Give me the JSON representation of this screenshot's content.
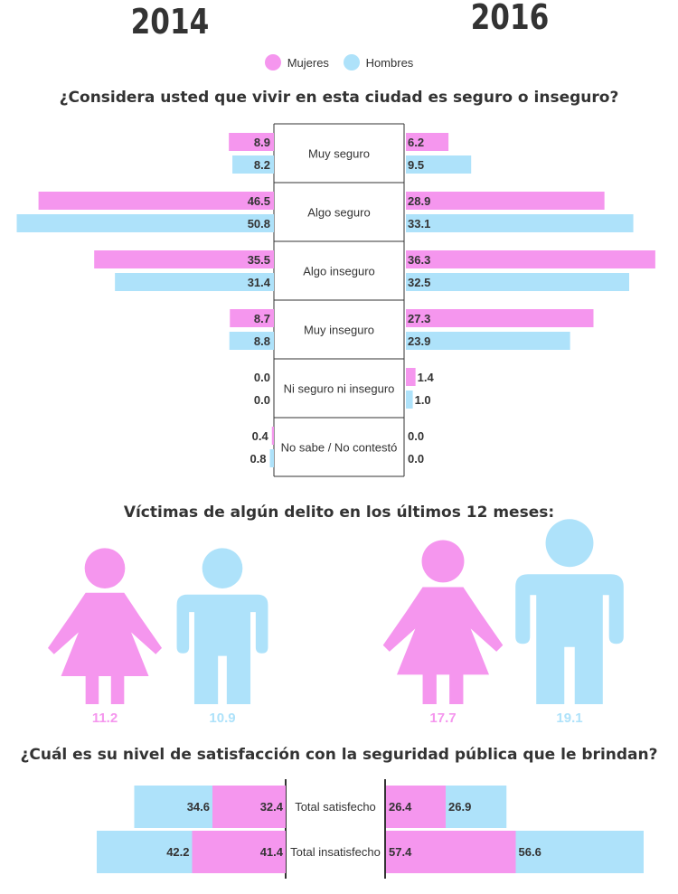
{
  "years": {
    "left": "2014",
    "right": "2016"
  },
  "legend": {
    "female": "Mujeres",
    "male": "Hombres"
  },
  "colors": {
    "female": "#f596ee",
    "male": "#aee2fa",
    "axis": "#333333"
  },
  "titles": {
    "safety": "¿Considera usted que vivir en esta ciudad es seguro o inseguro?",
    "victims": "Víctimas de algún delito en los últimos 12 meses:",
    "satisfaction": "¿Cuál es su nivel de satisfacción con la seguridad pública que le brindan?"
  },
  "chart_data": [
    {
      "type": "bar",
      "orientation": "horizontal-butterfly",
      "title": "¿Considera usted que vivir en esta ciudad es seguro o inseguro?",
      "categories": [
        "Muy seguro",
        "Algo seguro",
        "Algo inseguro",
        "Muy inseguro",
        "Ni seguro ni inseguro",
        "No sabe / No contestó"
      ],
      "series": [
        {
          "name": "Mujeres",
          "year": "2014",
          "values": [
            8.9,
            46.5,
            35.5,
            8.7,
            0.0,
            0.4
          ]
        },
        {
          "name": "Hombres",
          "year": "2014",
          "values": [
            8.2,
            50.8,
            31.4,
            8.8,
            0.0,
            0.8
          ]
        },
        {
          "name": "Mujeres",
          "year": "2016",
          "values": [
            6.2,
            28.9,
            36.3,
            27.3,
            1.4,
            0.0
          ]
        },
        {
          "name": "Hombres",
          "year": "2016",
          "values": [
            9.5,
            33.1,
            32.5,
            23.9,
            1.0,
            0.0
          ]
        }
      ],
      "labels": {
        "2014": {
          "Mujeres": [
            "8.9",
            "46.5",
            "35.5",
            "8.7",
            "0.0",
            "0.4"
          ],
          "Hombres": [
            "8.2",
            "50.8",
            "31.4",
            "8.8",
            "0.0",
            "0.8"
          ]
        },
        "2016": {
          "Mujeres": [
            "6.2",
            "28.9",
            "36.3",
            "27.3",
            "1.4",
            "0.0"
          ],
          "Hombres": [
            "9.5",
            "33.1",
            "32.5",
            "23.9",
            "1.0",
            "0.0"
          ]
        }
      },
      "legend": "top-center"
    },
    {
      "type": "pictogram",
      "title": "Víctimas de algún delito en los últimos 12 meses:",
      "items": [
        {
          "year": "2014",
          "gender": "Mujeres",
          "value": 11.2,
          "label": "11.2"
        },
        {
          "year": "2014",
          "gender": "Hombres",
          "value": 10.9,
          "label": "10.9"
        },
        {
          "year": "2016",
          "gender": "Mujeres",
          "value": 17.7,
          "label": "17.7"
        },
        {
          "year": "2016",
          "gender": "Hombres",
          "value": 19.1,
          "label": "19.1"
        }
      ]
    },
    {
      "type": "bar",
      "orientation": "horizontal-stacked-butterfly",
      "title": "¿Cuál es su nivel de satisfacción con la seguridad pública que le brindan?",
      "categories": [
        "Total satisfecho",
        "Total insatisfecho"
      ],
      "series": [
        {
          "name": "Mujeres",
          "year": "2014",
          "values": [
            32.4,
            41.4
          ]
        },
        {
          "name": "Hombres",
          "year": "2014",
          "values": [
            34.6,
            42.2
          ]
        },
        {
          "name": "Mujeres",
          "year": "2016",
          "values": [
            26.4,
            57.4
          ]
        },
        {
          "name": "Hombres",
          "year": "2016",
          "values": [
            26.9,
            56.6
          ]
        }
      ],
      "labels": {
        "2014": {
          "Mujeres": [
            "32.4",
            "41.4"
          ],
          "Hombres": [
            "34.6",
            "42.2"
          ]
        },
        "2016": {
          "Mujeres": [
            "26.4",
            "57.4"
          ],
          "Hombres": [
            "26.9",
            "56.6"
          ]
        }
      }
    }
  ]
}
